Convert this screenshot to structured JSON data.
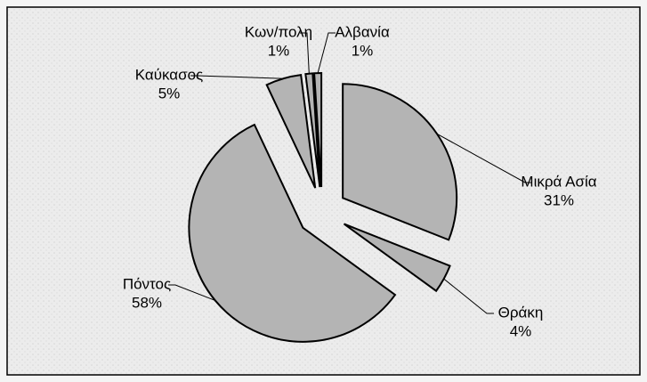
{
  "chart_data": {
    "type": "pie",
    "categories": [
      "Μικρά Ασία",
      "Θράκη",
      "Πόντος",
      "Καύκασος",
      "Κων/πολη",
      "Αλβανία"
    ],
    "values": [
      31,
      4,
      58,
      5,
      1,
      1
    ],
    "value_labels": [
      "31%",
      "4%",
      "58%",
      "5%",
      "1%",
      "1%"
    ],
    "color": "#b4b4b4"
  }
}
